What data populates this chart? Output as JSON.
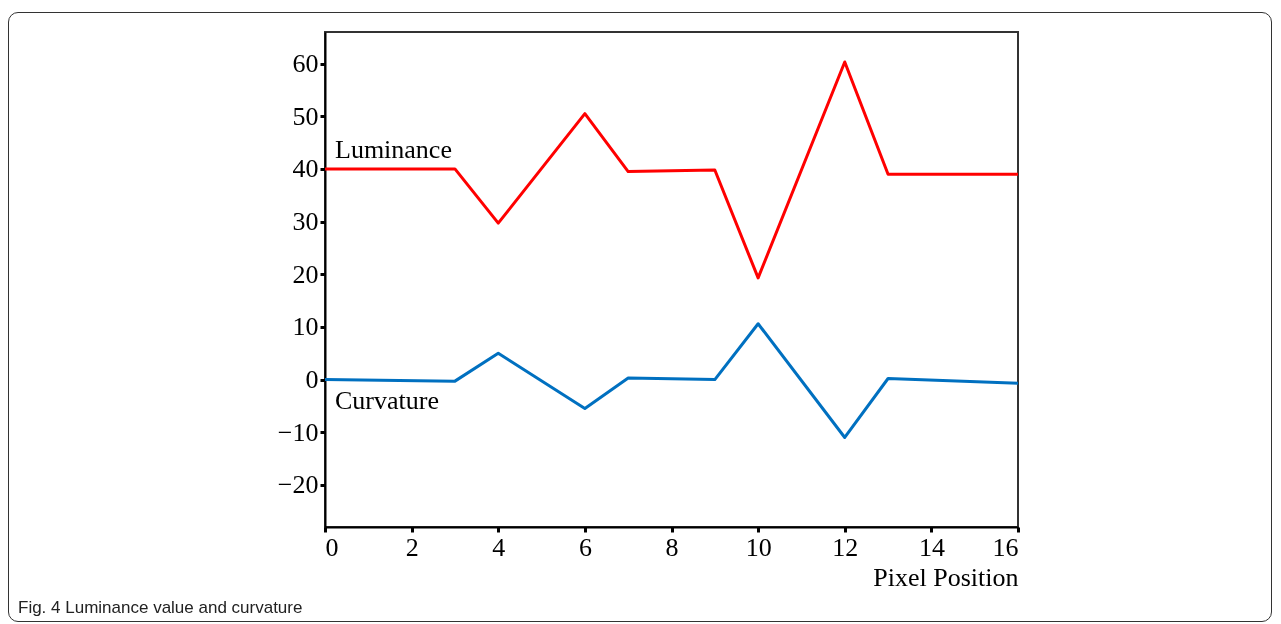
{
  "chart_data": {
    "type": "line",
    "xlabel": "Pixel Position",
    "xlim": [
      0,
      16
    ],
    "xticks": [
      0,
      2,
      4,
      6,
      8,
      10,
      12,
      14,
      16
    ],
    "ylim": [
      -28,
      66
    ],
    "yticks": [
      -20,
      -10,
      0,
      10,
      20,
      30,
      40,
      50,
      60
    ],
    "grid": false,
    "legend": false,
    "series": [
      {
        "name": "Luminance",
        "color": "#ff0000",
        "x": [
          0,
          3,
          4,
          6,
          7,
          9,
          10,
          12,
          13,
          16
        ],
        "values": [
          40,
          40,
          29.7,
          50.5,
          39.5,
          39.8,
          19.3,
          60.3,
          39,
          39
        ]
      },
      {
        "name": "Curvature",
        "color": "#0070c0",
        "x": [
          0,
          3,
          4,
          6,
          7,
          9,
          10,
          12,
          13,
          16
        ],
        "values": [
          0,
          -0.3,
          5,
          -5.5,
          0.3,
          0,
          10.6,
          -11,
          0.2,
          -0.7
        ]
      }
    ],
    "annotations": [
      "Fig. 4 Luminance value and curvature"
    ]
  }
}
